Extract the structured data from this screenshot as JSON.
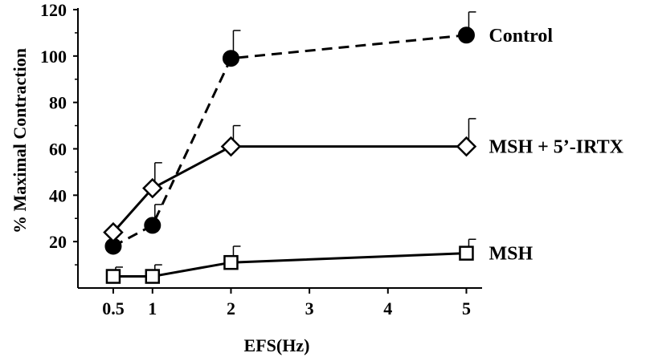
{
  "chart_data": {
    "type": "line",
    "title": "",
    "xlabel": "EFS(Hz)",
    "ylabel": "% Maximal Contraction",
    "xlim": [
      0.05,
      5.2
    ],
    "ylim": [
      0,
      120
    ],
    "xticks": [
      0.5,
      1,
      2,
      3,
      4,
      5
    ],
    "xtick_labels": [
      "0.5",
      "1",
      "2",
      "3",
      "4",
      "5"
    ],
    "yticks": [
      20,
      40,
      60,
      80,
      100,
      120
    ],
    "ytick_labels": [
      "20",
      "40",
      "60",
      "80",
      "100",
      "120"
    ],
    "grid": false,
    "legend": "direct labels at right end of each series",
    "series": [
      {
        "name": "Control",
        "marker": "filled-circle",
        "line": "dashed",
        "x": [
          0.5,
          1,
          2,
          5
        ],
        "y": [
          18,
          27,
          99,
          109
        ],
        "error": [
          0,
          9,
          12,
          10
        ]
      },
      {
        "name": "MSH + 5’-IRTX",
        "marker": "open-diamond",
        "line": "solid",
        "x": [
          0.5,
          1,
          2,
          5
        ],
        "y": [
          24,
          43,
          61,
          61
        ],
        "error": [
          0,
          11,
          9,
          12
        ]
      },
      {
        "name": "MSH",
        "marker": "open-square",
        "line": "solid",
        "x": [
          0.5,
          1,
          2,
          5
        ],
        "y": [
          5,
          5,
          11,
          15
        ],
        "error": [
          4,
          5,
          7,
          6
        ]
      }
    ]
  }
}
